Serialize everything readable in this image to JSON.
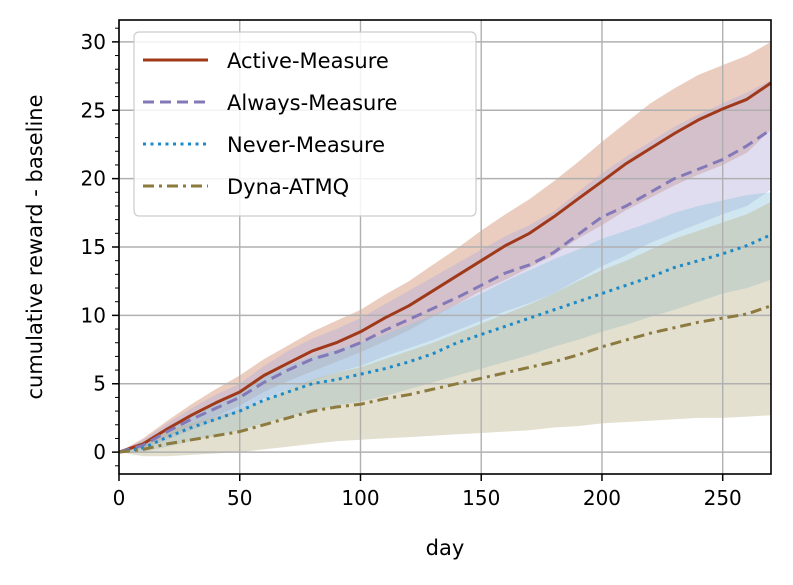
{
  "chart_data": {
    "type": "line",
    "title": "",
    "xlabel": "day",
    "ylabel": "cumulative reward - baseline",
    "xlim": [
      0,
      270
    ],
    "ylim": [
      -1.6,
      31.6
    ],
    "x_ticks": [
      0,
      50,
      100,
      150,
      200,
      250
    ],
    "y_ticks": [
      0,
      5,
      10,
      15,
      20,
      25,
      30
    ],
    "grid": true,
    "legend_position": "top-left",
    "x": [
      0,
      10,
      20,
      30,
      40,
      50,
      60,
      70,
      80,
      90,
      100,
      110,
      120,
      130,
      140,
      150,
      160,
      170,
      180,
      190,
      200,
      210,
      220,
      230,
      240,
      250,
      260,
      270
    ],
    "series": [
      {
        "name": "Active-Measure",
        "color": "#a0391a",
        "style": "solid",
        "values": [
          0,
          0.6,
          1.7,
          2.7,
          3.6,
          4.4,
          5.6,
          6.5,
          7.4,
          8.0,
          8.8,
          9.8,
          10.7,
          11.8,
          12.9,
          14.0,
          15.1,
          16.0,
          17.2,
          18.5,
          19.8,
          21.1,
          22.2,
          23.3,
          24.3,
          25.1,
          25.8,
          27.0
        ],
        "band_lower": [
          0,
          0.3,
          1.1,
          1.9,
          2.6,
          3.4,
          4.4,
          5.2,
          5.9,
          6.6,
          7.3,
          8.1,
          8.9,
          9.9,
          10.8,
          11.8,
          12.6,
          13.5,
          14.4,
          15.6,
          16.6,
          17.7,
          18.6,
          19.5,
          20.3,
          21.0,
          21.9,
          23.6
        ],
        "band_upper": [
          0,
          1.0,
          2.3,
          3.5,
          4.6,
          5.6,
          6.8,
          7.8,
          8.8,
          9.6,
          10.4,
          11.5,
          12.5,
          13.7,
          14.9,
          16.2,
          17.4,
          18.5,
          19.8,
          21.2,
          22.7,
          24.1,
          25.5,
          26.6,
          27.6,
          28.3,
          29.0,
          30.0
        ],
        "band_color": "#cc8866"
      },
      {
        "name": "Always-Measure",
        "color": "#8479b8",
        "style": "dashed",
        "values": [
          0,
          0.5,
          1.5,
          2.4,
          3.2,
          4.0,
          5.1,
          6.0,
          6.8,
          7.3,
          8.0,
          8.9,
          9.7,
          10.5,
          11.3,
          12.2,
          13.1,
          13.7,
          14.6,
          15.9,
          17.2,
          18.0,
          19.0,
          20.0,
          20.7,
          21.4,
          22.4,
          23.6
        ],
        "band_lower": [
          0,
          0.2,
          0.9,
          1.6,
          2.3,
          3.0,
          3.9,
          4.6,
          5.2,
          5.8,
          6.3,
          7.0,
          7.6,
          8.2,
          8.9,
          9.6,
          10.3,
          10.9,
          11.6,
          12.6,
          13.6,
          14.4,
          15.3,
          16.0,
          16.7,
          17.4,
          18.0,
          19.2
        ],
        "band_upper": [
          0,
          0.9,
          2.1,
          3.2,
          4.2,
          5.0,
          6.3,
          7.4,
          8.3,
          9.0,
          9.8,
          10.8,
          11.8,
          12.8,
          13.8,
          14.8,
          15.8,
          16.6,
          17.6,
          19.0,
          20.4,
          21.6,
          22.7,
          23.8,
          24.7,
          25.5,
          26.3,
          27.2
        ],
        "band_color": "#b4aedb"
      },
      {
        "name": "Never-Measure",
        "color": "#1c8ac8",
        "style": "dotted",
        "values": [
          0,
          0.3,
          1.1,
          1.8,
          2.4,
          3.0,
          3.8,
          4.4,
          5.0,
          5.3,
          5.7,
          6.1,
          6.6,
          7.2,
          8.0,
          8.6,
          9.2,
          9.8,
          10.4,
          11.0,
          11.6,
          12.2,
          12.8,
          13.5,
          14.0,
          14.5,
          15.1,
          15.9
        ],
        "band_lower": [
          0,
          0.0,
          0.4,
          0.8,
          1.2,
          1.6,
          2.1,
          2.6,
          3.0,
          3.4,
          3.7,
          4.1,
          4.6,
          5.1,
          5.6,
          6.1,
          6.6,
          7.1,
          7.7,
          8.2,
          8.8,
          9.3,
          9.9,
          10.4,
          11.0,
          11.6,
          12.0,
          12.6
        ],
        "band_upper": [
          0,
          0.7,
          1.8,
          2.8,
          3.6,
          4.4,
          5.5,
          6.3,
          7.0,
          7.5,
          8.0,
          8.6,
          9.3,
          10.0,
          10.8,
          11.6,
          12.5,
          13.3,
          14.1,
          14.8,
          15.6,
          16.2,
          16.8,
          17.5,
          18.0,
          18.4,
          18.8,
          19.0
        ],
        "band_color": "#8fc5dd"
      },
      {
        "name": "Dyna-ATMQ",
        "color": "#8c7a3f",
        "style": "dashdot",
        "values": [
          0,
          0.2,
          0.6,
          0.9,
          1.2,
          1.5,
          2.0,
          2.5,
          3.0,
          3.3,
          3.5,
          3.9,
          4.2,
          4.6,
          5.0,
          5.4,
          5.8,
          6.2,
          6.6,
          7.1,
          7.7,
          8.2,
          8.7,
          9.1,
          9.5,
          9.8,
          10.1,
          10.7
        ],
        "band_lower": [
          0,
          -0.3,
          -0.3,
          -0.2,
          -0.1,
          0.0,
          0.2,
          0.4,
          0.6,
          0.8,
          0.9,
          1.0,
          1.1,
          1.2,
          1.3,
          1.4,
          1.5,
          1.6,
          1.8,
          1.9,
          2.1,
          2.2,
          2.3,
          2.4,
          2.5,
          2.5,
          2.6,
          2.7
        ],
        "band_upper": [
          0,
          0.8,
          1.6,
          2.1,
          2.6,
          3.1,
          3.8,
          4.6,
          5.3,
          5.8,
          6.2,
          6.8,
          7.4,
          8.0,
          8.7,
          9.4,
          10.1,
          10.8,
          11.6,
          12.5,
          13.3,
          14.0,
          14.8,
          15.6,
          16.2,
          16.8,
          17.4,
          18.3
        ],
        "band_color": "#bcb48e"
      }
    ]
  }
}
